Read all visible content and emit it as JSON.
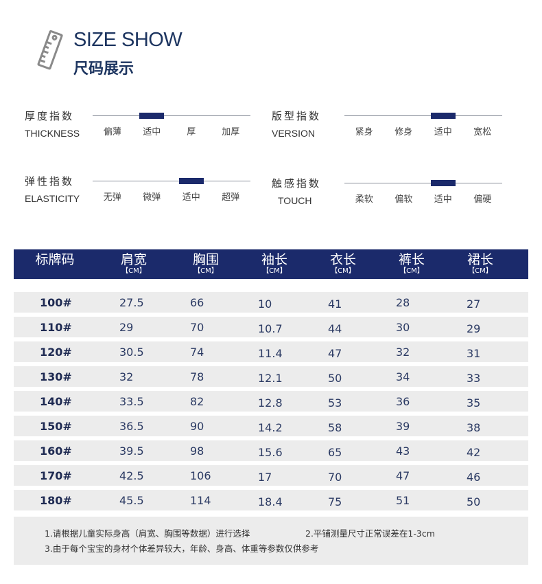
{
  "header": {
    "title_en": "SIZE SHOW",
    "title_cn": "尺码展示",
    "icon": "ruler-icon"
  },
  "indicators": [
    {
      "cn": "厚度指数",
      "en": "THICKNESS",
      "options": [
        "偏薄",
        "适中",
        "厚",
        "加厚"
      ],
      "selected": 1
    },
    {
      "cn": "版型指数",
      "en": "VERSION",
      "options": [
        "紧身",
        "修身",
        "适中",
        "宽松"
      ],
      "selected": 2
    },
    {
      "cn": "弹性指数",
      "en": "ELASTICITY",
      "options": [
        "无弹",
        "微弹",
        "适中",
        "超弹"
      ],
      "selected": 2
    },
    {
      "cn": "触感指数",
      "en": "TOUCH",
      "options": [
        "柔软",
        "偏软",
        "适中",
        "偏硬"
      ],
      "selected": 2
    }
  ],
  "table": {
    "columns": [
      {
        "name": "标牌码",
        "unit": ""
      },
      {
        "name": "肩宽",
        "unit": "【CM】"
      },
      {
        "name": "胸围",
        "unit": "【CM】"
      },
      {
        "name": "袖长",
        "unit": "【CM】"
      },
      {
        "name": "衣长",
        "unit": "【CM】"
      },
      {
        "name": "裤长",
        "unit": "【CM】"
      },
      {
        "name": "裙长",
        "unit": "【CM】"
      }
    ],
    "rows": [
      [
        "100#",
        "27.5",
        "66",
        "10",
        "41",
        "28",
        "27"
      ],
      [
        "110#",
        "29",
        "70",
        "10.7",
        "44",
        "30",
        "29"
      ],
      [
        "120#",
        "30.5",
        "74",
        "11.4",
        "47",
        "32",
        "31"
      ],
      [
        "130#",
        "32",
        "78",
        "12.1",
        "50",
        "34",
        "33"
      ],
      [
        "140#",
        "33.5",
        "82",
        "12.8",
        "53",
        "36",
        "35"
      ],
      [
        "150#",
        "36.5",
        "90",
        "14.2",
        "58",
        "39",
        "38"
      ],
      [
        "160#",
        "39.5",
        "98",
        "15.6",
        "65",
        "43",
        "42"
      ],
      [
        "170#",
        "42.5",
        "106",
        "17",
        "70",
        "47",
        "46"
      ],
      [
        "180#",
        "45.5",
        "114",
        "18.4",
        "75",
        "51",
        "50"
      ]
    ]
  },
  "notes": {
    "n1": "1.请根据儿童实际身高（肩宽、胸围等数据）进行选择",
    "n2": "2.平铺测量尺寸正常误差在1-3cm",
    "n3": "3.由于每个宝宝的身材个体差异较大，年龄、身高、体重等参数仅供参考"
  },
  "colors": {
    "accent": "#1b2a6b",
    "row_bg": "#ececec"
  }
}
